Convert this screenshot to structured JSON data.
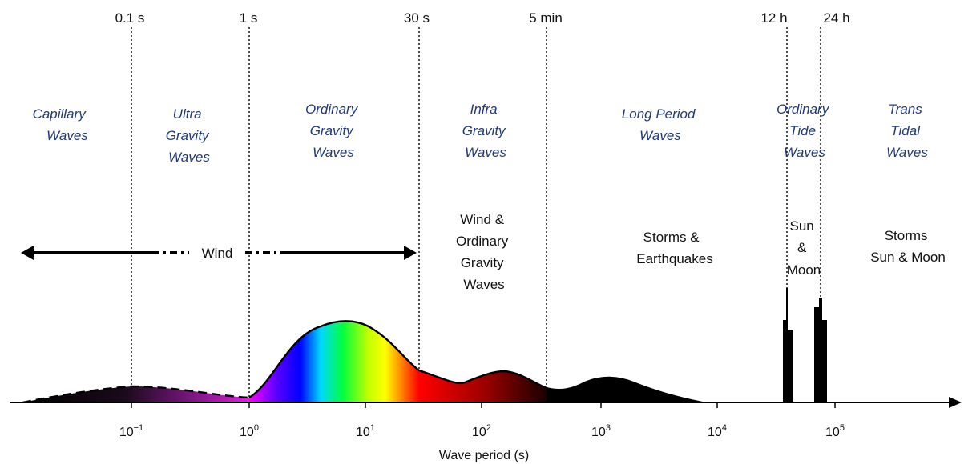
{
  "time_markers": [
    "0.1 s",
    "1 s",
    "30 s",
    "5 min",
    "12 h",
    "24 h"
  ],
  "categories": [
    [
      "Capillary",
      "Waves"
    ],
    [
      "Ultra",
      "Gravity",
      "Waves"
    ],
    [
      "Ordinary",
      "Gravity",
      "Waves"
    ],
    [
      "Infra",
      "Gravity",
      "Waves"
    ],
    [
      "Long Period",
      "Waves"
    ],
    [
      "Ordinary",
      "Tide",
      "Waves"
    ],
    [
      "Trans",
      "Tidal",
      "Waves"
    ]
  ],
  "sources": {
    "wind": "Wind",
    "infra": [
      "Wind &",
      "Ordinary",
      "Gravity",
      "Waves"
    ],
    "long_period": [
      "Storms &",
      "Earthquakes"
    ],
    "tide": [
      "Sun",
      "&",
      "Moon"
    ],
    "trans_tidal": [
      "Storms",
      "Sun & Moon"
    ]
  },
  "axis": {
    "label": "Wave period (s)",
    "tick_base": "10",
    "tick_exponents": [
      "−1",
      "0",
      "1",
      "2",
      "3",
      "4",
      "5"
    ]
  },
  "colors": {
    "category_text": "#1f3a7a",
    "spectrum": [
      "#ff00ff",
      "#0000ff",
      "#00ffff",
      "#00ff00",
      "#ffff00",
      "#ff0000"
    ]
  }
}
